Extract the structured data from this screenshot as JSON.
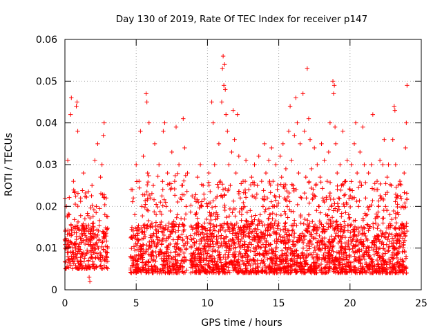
{
  "chart_data": {
    "type": "scatter",
    "title": "Day 130 of 2019, Rate Of TEC Index for receiver p147",
    "xlabel": "GPS time / hours",
    "ylabel": "ROTI / TECUs",
    "xlim": [
      0,
      25
    ],
    "ylim": [
      0,
      0.06
    ],
    "grid": true,
    "x_ticks": [
      {
        "value": 0,
        "label": "0"
      },
      {
        "value": 5,
        "label": "5"
      },
      {
        "value": 10,
        "label": "10"
      },
      {
        "value": 15,
        "label": "15"
      },
      {
        "value": 20,
        "label": "20"
      },
      {
        "value": 25,
        "label": "25"
      }
    ],
    "y_ticks": [
      {
        "value": 0,
        "label": "0"
      },
      {
        "value": 0.01,
        "label": "0.01"
      },
      {
        "value": 0.02,
        "label": "0.02"
      },
      {
        "value": 0.03,
        "label": "0.03"
      },
      {
        "value": 0.04,
        "label": "0.04"
      },
      {
        "value": 0.05,
        "label": "0.05"
      },
      {
        "value": 0.06,
        "label": "0.06"
      }
    ],
    "marker": "+",
    "marker_color": "#ff0000",
    "series": [
      {
        "name": "ROTI",
        "points": [
          [
            0.0,
            0.012
          ],
          [
            0.1,
            0.02
          ],
          [
            0.2,
            0.031
          ],
          [
            0.3,
            0.018
          ],
          [
            0.4,
            0.042
          ],
          [
            0.45,
            0.046
          ],
          [
            0.5,
            0.009
          ],
          [
            0.6,
            0.026
          ],
          [
            0.7,
            0.015
          ],
          [
            0.8,
            0.044
          ],
          [
            0.85,
            0.045
          ],
          [
            0.9,
            0.038
          ],
          [
            1.0,
            0.011
          ],
          [
            1.1,
            0.022
          ],
          [
            1.2,
            0.008
          ],
          [
            1.3,
            0.028
          ],
          [
            1.4,
            0.017
          ],
          [
            1.5,
            0.012
          ],
          [
            1.6,
            0.009
          ],
          [
            1.7,
            0.003
          ],
          [
            1.75,
            0.002
          ],
          [
            1.8,
            0.014
          ],
          [
            1.9,
            0.025
          ],
          [
            2.0,
            0.016
          ],
          [
            2.1,
            0.031
          ],
          [
            2.2,
            0.02
          ],
          [
            2.3,
            0.035
          ],
          [
            2.4,
            0.012
          ],
          [
            2.5,
            0.027
          ],
          [
            2.6,
            0.03
          ],
          [
            2.7,
            0.037
          ],
          [
            2.75,
            0.04
          ],
          [
            2.8,
            0.018
          ],
          [
            2.9,
            0.022
          ],
          [
            3.0,
            0.01
          ],
          [
            4.6,
            0.008
          ],
          [
            4.7,
            0.015
          ],
          [
            4.8,
            0.022
          ],
          [
            4.9,
            0.018
          ],
          [
            5.0,
            0.03
          ],
          [
            5.1,
            0.012
          ],
          [
            5.2,
            0.026
          ],
          [
            5.3,
            0.038
          ],
          [
            5.4,
            0.02
          ],
          [
            5.5,
            0.032
          ],
          [
            5.6,
            0.015
          ],
          [
            5.7,
            0.047
          ],
          [
            5.75,
            0.045
          ],
          [
            5.8,
            0.028
          ],
          [
            5.9,
            0.04
          ],
          [
            6.0,
            0.022
          ],
          [
            6.1,
            0.009
          ],
          [
            6.2,
            0.025
          ],
          [
            6.3,
            0.035
          ],
          [
            6.4,
            0.018
          ],
          [
            6.5,
            0.012
          ],
          [
            6.6,
            0.03
          ],
          [
            6.7,
            0.021
          ],
          [
            6.8,
            0.014
          ],
          [
            6.9,
            0.038
          ],
          [
            7.0,
            0.04
          ],
          [
            7.1,
            0.02
          ],
          [
            7.2,
            0.028
          ],
          [
            7.3,
            0.016
          ],
          [
            7.4,
            0.024
          ],
          [
            7.5,
            0.033
          ],
          [
            7.6,
            0.012
          ],
          [
            7.7,
            0.026
          ],
          [
            7.8,
            0.039
          ],
          [
            7.9,
            0.018
          ],
          [
            8.0,
            0.03
          ],
          [
            8.1,
            0.022
          ],
          [
            8.2,
            0.025
          ],
          [
            8.3,
            0.041
          ],
          [
            8.4,
            0.034
          ],
          [
            8.5,
            0.02
          ],
          [
            8.6,
            0.028
          ],
          [
            8.8,
            0.007
          ],
          [
            8.9,
            0.012
          ],
          [
            9.0,
            0.015
          ],
          [
            9.1,
            0.022
          ],
          [
            9.2,
            0.018
          ],
          [
            9.3,
            0.027
          ],
          [
            9.4,
            0.01
          ],
          [
            9.5,
            0.03
          ],
          [
            9.6,
            0.02
          ],
          [
            9.7,
            0.025
          ],
          [
            9.8,
            0.016
          ],
          [
            9.9,
            0.012
          ],
          [
            10.0,
            0.02
          ],
          [
            10.1,
            0.028
          ],
          [
            10.2,
            0.015
          ],
          [
            10.3,
            0.045
          ],
          [
            10.4,
            0.04
          ],
          [
            10.5,
            0.03
          ],
          [
            10.6,
            0.022
          ],
          [
            10.7,
            0.018
          ],
          [
            10.8,
            0.035
          ],
          [
            10.9,
            0.026
          ],
          [
            11.0,
            0.045
          ],
          [
            11.05,
            0.053
          ],
          [
            11.1,
            0.056
          ],
          [
            11.15,
            0.049
          ],
          [
            11.2,
            0.054
          ],
          [
            11.25,
            0.048
          ],
          [
            11.3,
            0.042
          ],
          [
            11.4,
            0.038
          ],
          [
            11.5,
            0.03
          ],
          [
            11.6,
            0.025
          ],
          [
            11.7,
            0.033
          ],
          [
            11.8,
            0.043
          ],
          [
            11.9,
            0.036
          ],
          [
            12.0,
            0.028
          ],
          [
            12.1,
            0.042
          ],
          [
            12.2,
            0.032
          ],
          [
            12.3,
            0.022
          ],
          [
            12.4,
            0.018
          ],
          [
            12.5,
            0.026
          ],
          [
            12.6,
            0.02
          ],
          [
            12.7,
            0.031
          ],
          [
            12.8,
            0.015
          ],
          [
            12.9,
            0.024
          ],
          [
            13.0,
            0.019
          ],
          [
            13.1,
            0.027
          ],
          [
            13.2,
            0.012
          ],
          [
            13.3,
            0.03
          ],
          [
            13.4,
            0.022
          ],
          [
            13.5,
            0.025
          ],
          [
            13.6,
            0.032
          ],
          [
            13.7,
            0.018
          ],
          [
            13.8,
            0.026
          ],
          [
            13.9,
            0.02
          ],
          [
            14.0,
            0.035
          ],
          [
            14.1,
            0.028
          ],
          [
            14.2,
            0.022
          ],
          [
            14.3,
            0.031
          ],
          [
            14.4,
            0.018
          ],
          [
            14.5,
            0.034
          ],
          [
            14.6,
            0.026
          ],
          [
            14.7,
            0.02
          ],
          [
            14.8,
            0.03
          ],
          [
            14.9,
            0.024
          ],
          [
            15.0,
            0.016
          ],
          [
            15.1,
            0.032
          ],
          [
            15.2,
            0.027
          ],
          [
            15.3,
            0.035
          ],
          [
            15.4,
            0.022
          ],
          [
            15.5,
            0.029
          ],
          [
            15.6,
            0.02
          ],
          [
            15.7,
            0.038
          ],
          [
            15.8,
            0.044
          ],
          [
            15.9,
            0.031
          ],
          [
            16.0,
            0.025
          ],
          [
            16.1,
            0.037
          ],
          [
            16.2,
            0.046
          ],
          [
            16.3,
            0.04
          ],
          [
            16.4,
            0.028
          ],
          [
            16.5,
            0.035
          ],
          [
            16.6,
            0.022
          ],
          [
            16.7,
            0.047
          ],
          [
            16.8,
            0.038
          ],
          [
            16.9,
            0.027
          ],
          [
            17.0,
            0.053
          ],
          [
            17.1,
            0.041
          ],
          [
            17.2,
            0.036
          ],
          [
            17.3,
            0.029
          ],
          [
            17.4,
            0.022
          ],
          [
            17.5,
            0.034
          ],
          [
            17.6,
            0.025
          ],
          [
            17.7,
            0.03
          ],
          [
            17.8,
            0.02
          ],
          [
            17.9,
            0.027
          ],
          [
            18.0,
            0.035
          ],
          [
            18.1,
            0.022
          ],
          [
            18.2,
            0.031
          ],
          [
            18.3,
            0.018
          ],
          [
            18.4,
            0.026
          ],
          [
            18.5,
            0.033
          ],
          [
            18.6,
            0.04
          ],
          [
            18.7,
            0.02
          ],
          [
            18.8,
            0.05
          ],
          [
            18.85,
            0.047
          ],
          [
            18.9,
            0.049
          ],
          [
            18.95,
            0.039
          ],
          [
            19.0,
            0.035
          ],
          [
            19.1,
            0.028
          ],
          [
            19.2,
            0.022
          ],
          [
            19.3,
            0.03
          ],
          [
            19.4,
            0.025
          ],
          [
            19.5,
            0.038
          ],
          [
            19.6,
            0.02
          ],
          [
            19.7,
            0.026
          ],
          [
            19.8,
            0.031
          ],
          [
            19.9,
            0.018
          ],
          [
            20.0,
            0.024
          ],
          [
            20.1,
            0.03
          ],
          [
            20.2,
            0.022
          ],
          [
            20.3,
            0.035
          ],
          [
            20.4,
            0.04
          ],
          [
            20.5,
            0.028
          ],
          [
            20.6,
            0.02
          ],
          [
            20.7,
            0.033
          ],
          [
            20.8,
            0.025
          ],
          [
            20.9,
            0.039
          ],
          [
            21.0,
            0.03
          ],
          [
            21.1,
            0.022
          ],
          [
            21.2,
            0.018
          ],
          [
            21.3,
            0.028
          ],
          [
            21.4,
            0.02
          ],
          [
            21.5,
            0.03
          ],
          [
            21.6,
            0.042
          ],
          [
            21.7,
            0.024
          ],
          [
            21.8,
            0.016
          ],
          [
            21.9,
            0.026
          ],
          [
            22.0,
            0.02
          ],
          [
            22.1,
            0.031
          ],
          [
            22.2,
            0.022
          ],
          [
            22.3,
            0.03
          ],
          [
            22.4,
            0.036
          ],
          [
            22.5,
            0.02
          ],
          [
            22.6,
            0.027
          ],
          [
            22.7,
            0.03
          ],
          [
            22.8,
            0.018
          ],
          [
            22.9,
            0.025
          ],
          [
            23.0,
            0.036
          ],
          [
            23.1,
            0.044
          ],
          [
            23.15,
            0.043
          ],
          [
            23.2,
            0.03
          ],
          [
            23.3,
            0.022
          ],
          [
            23.4,
            0.018
          ],
          [
            23.5,
            0.026
          ],
          [
            23.6,
            0.015
          ],
          [
            23.7,
            0.02
          ],
          [
            23.8,
            0.028
          ],
          [
            23.9,
            0.034
          ],
          [
            23.95,
            0.04
          ],
          [
            24.0,
            0.049
          ]
        ],
        "density": [
          {
            "x_start": 0.0,
            "x_end": 3.0,
            "y_floor": 0.005,
            "y_typical": 0.02,
            "per_hour": 110
          },
          {
            "x_start": 4.6,
            "x_end": 8.6,
            "y_floor": 0.004,
            "y_typical": 0.024,
            "per_hour": 120
          },
          {
            "x_start": 8.8,
            "x_end": 24.0,
            "y_floor": 0.004,
            "y_typical": 0.022,
            "per_hour": 140
          }
        ]
      }
    ]
  }
}
